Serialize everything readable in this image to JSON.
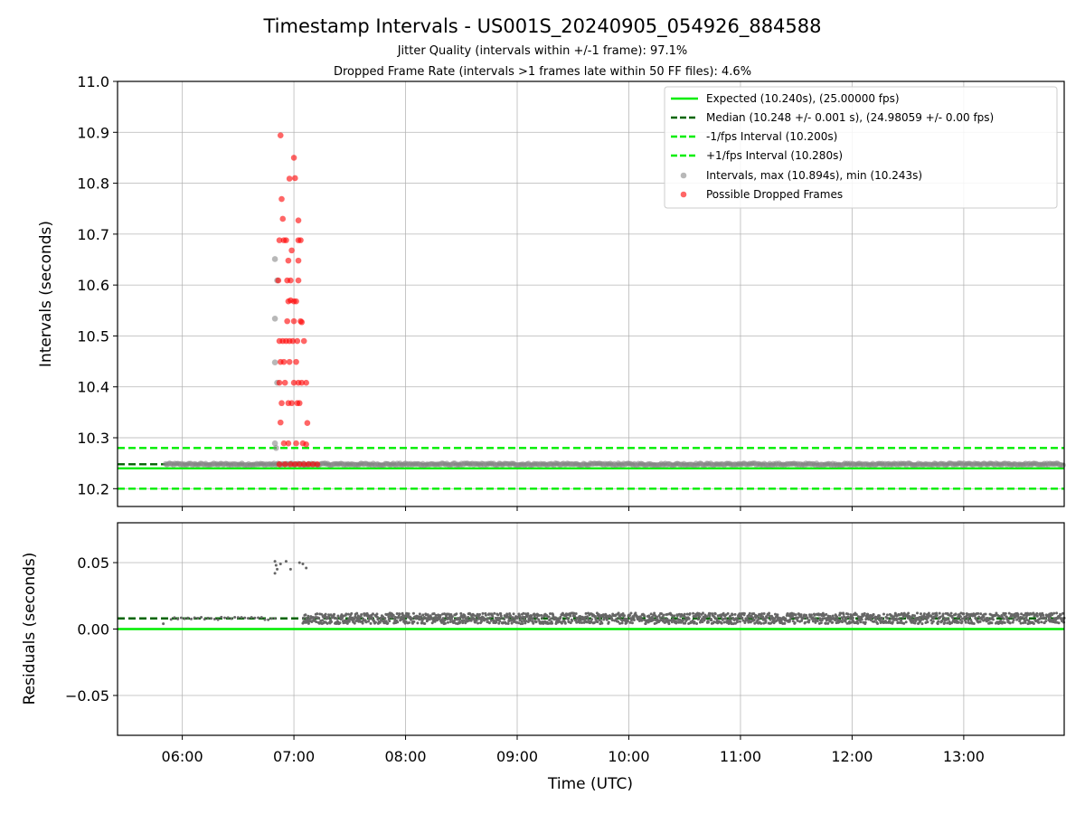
{
  "chart_data": {
    "title": "Timestamp Intervals - US001S_20240905_054926_884588",
    "subtitle_1": "Jitter Quality (intervals within +/-1 frame): 97.1%",
    "subtitle_2": "Dropped Frame Rate (intervals >1 frames late within 50 FF files): 4.6%",
    "xlabel": "Time (UTC)",
    "x_ticks": [
      "06:00",
      "07:00",
      "08:00",
      "09:00",
      "10:00",
      "11:00",
      "12:00",
      "13:00"
    ],
    "x_range_hours": [
      5.42,
      13.9
    ],
    "grid": true,
    "panels": [
      {
        "type": "scatter",
        "ylabel": "Intervals (seconds)",
        "ylim": [
          10.165,
          11.0
        ],
        "y_ticks": [
          "10.2",
          "10.3",
          "10.4",
          "10.5",
          "10.6",
          "10.7",
          "10.8",
          "10.9",
          "11.0"
        ],
        "y_tick_values": [
          10.2,
          10.3,
          10.4,
          10.5,
          10.6,
          10.7,
          10.8,
          10.9,
          11.0
        ],
        "hlines": [
          {
            "name": "Expected (10.240s), (25.00000 fps)",
            "y": 10.24,
            "color": "#00ee00",
            "style": "solid"
          },
          {
            "name": "Median (10.248 +/- 0.001 s), (24.98059 +/- 0.00 fps)",
            "y": 10.248,
            "color": "#006400",
            "style": "dashed"
          },
          {
            "name": "-1/fps Interval (10.200s)",
            "y": 10.2,
            "color": "#00ee00",
            "style": "dashed"
          },
          {
            "name": "+1/fps Interval (10.280s)",
            "y": 10.28,
            "color": "#00ee00",
            "style": "dashed"
          }
        ],
        "intervals": {
          "name": "Intervals, max (10.894s), min (10.243s)",
          "color": "#888888",
          "x_range_hours": [
            5.85,
            13.9
          ],
          "typical_y": 10.248,
          "outliers": [
            {
              "x": 6.83,
              "y": 10.289
            },
            {
              "x": 6.83,
              "y": 10.651
            },
            {
              "x": 6.83,
              "y": 10.534
            },
            {
              "x": 6.83,
              "y": 10.448
            },
            {
              "x": 6.85,
              "y": 10.609
            },
            {
              "x": 6.85,
              "y": 10.408
            },
            {
              "x": 6.84,
              "y": 10.28
            }
          ]
        },
        "dropped": {
          "name": "Possible Dropped Frames",
          "color": "#ff0000",
          "points": [
            {
              "x": 6.88,
              "y": 10.894
            },
            {
              "x": 6.89,
              "y": 10.769
            },
            {
              "x": 6.9,
              "y": 10.73
            },
            {
              "x": 6.87,
              "y": 10.688
            },
            {
              "x": 6.91,
              "y": 10.688
            },
            {
              "x": 6.93,
              "y": 10.688
            },
            {
              "x": 6.96,
              "y": 10.809
            },
            {
              "x": 7.0,
              "y": 10.85
            },
            {
              "x": 7.01,
              "y": 10.81
            },
            {
              "x": 6.98,
              "y": 10.668
            },
            {
              "x": 6.95,
              "y": 10.648
            },
            {
              "x": 7.04,
              "y": 10.727
            },
            {
              "x": 7.04,
              "y": 10.688
            },
            {
              "x": 7.06,
              "y": 10.688
            },
            {
              "x": 7.04,
              "y": 10.648
            },
            {
              "x": 6.86,
              "y": 10.609
            },
            {
              "x": 6.94,
              "y": 10.609
            },
            {
              "x": 6.97,
              "y": 10.609
            },
            {
              "x": 7.04,
              "y": 10.609
            },
            {
              "x": 6.97,
              "y": 10.57
            },
            {
              "x": 6.95,
              "y": 10.568
            },
            {
              "x": 7.0,
              "y": 10.568
            },
            {
              "x": 7.02,
              "y": 10.568
            },
            {
              "x": 6.94,
              "y": 10.529
            },
            {
              "x": 7.0,
              "y": 10.529
            },
            {
              "x": 7.06,
              "y": 10.529
            },
            {
              "x": 7.07,
              "y": 10.527
            },
            {
              "x": 6.87,
              "y": 10.49
            },
            {
              "x": 6.9,
              "y": 10.49
            },
            {
              "x": 6.93,
              "y": 10.49
            },
            {
              "x": 6.96,
              "y": 10.49
            },
            {
              "x": 6.99,
              "y": 10.49
            },
            {
              "x": 7.03,
              "y": 10.49
            },
            {
              "x": 7.09,
              "y": 10.49
            },
            {
              "x": 6.88,
              "y": 10.449
            },
            {
              "x": 6.91,
              "y": 10.449
            },
            {
              "x": 6.96,
              "y": 10.449
            },
            {
              "x": 7.02,
              "y": 10.449
            },
            {
              "x": 6.87,
              "y": 10.408
            },
            {
              "x": 6.92,
              "y": 10.408
            },
            {
              "x": 7.0,
              "y": 10.408
            },
            {
              "x": 7.04,
              "y": 10.408
            },
            {
              "x": 7.07,
              "y": 10.408
            },
            {
              "x": 7.11,
              "y": 10.408
            },
            {
              "x": 6.89,
              "y": 10.368
            },
            {
              "x": 6.95,
              "y": 10.368
            },
            {
              "x": 6.98,
              "y": 10.368
            },
            {
              "x": 7.03,
              "y": 10.368
            },
            {
              "x": 7.05,
              "y": 10.368
            },
            {
              "x": 6.88,
              "y": 10.33
            },
            {
              "x": 7.12,
              "y": 10.329
            },
            {
              "x": 6.91,
              "y": 10.289
            },
            {
              "x": 6.95,
              "y": 10.289
            },
            {
              "x": 7.02,
              "y": 10.289
            },
            {
              "x": 7.08,
              "y": 10.289
            },
            {
              "x": 7.11,
              "y": 10.287
            },
            {
              "x": 6.87,
              "y": 10.248
            },
            {
              "x": 6.92,
              "y": 10.248
            },
            {
              "x": 6.97,
              "y": 10.248
            },
            {
              "x": 7.01,
              "y": 10.248
            },
            {
              "x": 7.05,
              "y": 10.248
            },
            {
              "x": 7.09,
              "y": 10.248
            },
            {
              "x": 7.13,
              "y": 10.248
            },
            {
              "x": 7.17,
              "y": 10.248
            },
            {
              "x": 7.21,
              "y": 10.248
            }
          ]
        }
      },
      {
        "type": "scatter",
        "ylabel": "Residuals (seconds)",
        "ylim": [
          -0.08,
          0.08
        ],
        "y_ticks": [
          "−0.05",
          "0.00",
          "0.05"
        ],
        "y_tick_values": [
          -0.05,
          0.0,
          0.05
        ],
        "hlines": [
          {
            "y": 0.0,
            "color": "#00ee00",
            "style": "solid"
          },
          {
            "y": 0.008,
            "color": "#006400",
            "style": "dashed"
          }
        ],
        "residuals": {
          "color": "#666666",
          "x_range_hours": [
            5.85,
            13.9
          ],
          "typical_y": 0.008,
          "outliers": [
            {
              "x": 6.83,
              "y": 0.051
            },
            {
              "x": 6.84,
              "y": 0.048
            },
            {
              "x": 6.85,
              "y": 0.045
            },
            {
              "x": 6.83,
              "y": 0.042
            },
            {
              "x": 6.88,
              "y": 0.049
            },
            {
              "x": 6.93,
              "y": 0.051
            },
            {
              "x": 6.97,
              "y": 0.045
            },
            {
              "x": 7.05,
              "y": 0.05
            },
            {
              "x": 7.08,
              "y": 0.049
            },
            {
              "x": 7.11,
              "y": 0.046
            },
            {
              "x": 5.83,
              "y": 0.004
            }
          ]
        }
      }
    ]
  }
}
